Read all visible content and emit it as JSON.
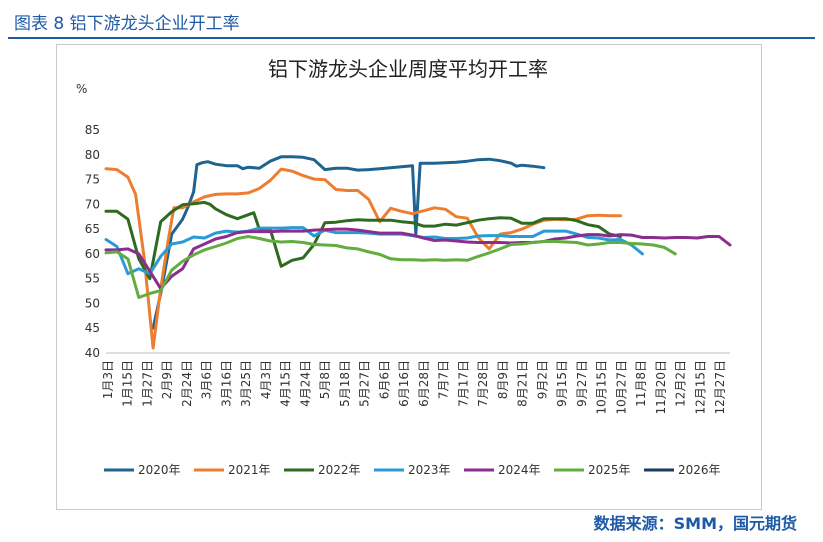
{
  "header": {
    "figure_label": "图表 8 铝下游龙头企业开工率",
    "source": "数据来源：SMM，国元期货"
  },
  "colors": {
    "header_blue": "#1f5aa6"
  },
  "chart_data": {
    "type": "line",
    "title": "铝下游龙头企业周度平均开工率",
    "unit_label": "%",
    "ylim": [
      40,
      85
    ],
    "yticks": [
      40,
      45,
      50,
      55,
      60,
      65,
      70,
      75,
      80,
      85
    ],
    "x_ticks": [
      "1月3日",
      "1月15日",
      "1月27日",
      "2月9日",
      "2月24日",
      "3月6日",
      "3月16日",
      "3月25日",
      "4月3日",
      "4月15日",
      "4月24日",
      "5月8日",
      "5月18日",
      "5月27日",
      "6月6日",
      "6月16日",
      "6月28日",
      "7月7日",
      "7月17日",
      "7月28日",
      "8月9日",
      "8月21日",
      "9月2日",
      "9月15日",
      "9月27日",
      "10月15日",
      "10月27日",
      "11月8日",
      "11月20日",
      "12月2日",
      "12月15日",
      "12月27日"
    ],
    "grid": false,
    "legend_position": "bottom",
    "series": [
      {
        "name": "2020年",
        "color": "#1f6391",
        "points": [
          [
            5.3,
            45.0
          ],
          [
            6,
            52.0
          ],
          [
            6.5,
            58.0
          ],
          [
            7,
            64.0
          ],
          [
            7.5,
            65.5
          ],
          [
            8,
            67.0
          ],
          [
            8.5,
            69.5
          ],
          [
            9,
            72.5
          ],
          [
            9.3,
            78.0
          ],
          [
            9.8,
            78.4
          ],
          [
            10.3,
            78.6
          ],
          [
            11,
            78.1
          ],
          [
            12,
            77.8
          ],
          [
            13,
            77.8
          ],
          [
            13.5,
            77.2
          ],
          [
            14,
            77.5
          ],
          [
            15,
            77.3
          ],
          [
            16,
            78.7
          ],
          [
            17,
            79.6
          ],
          [
            18,
            79.6
          ],
          [
            19,
            79.5
          ],
          [
            20,
            79.0
          ],
          [
            21,
            77.0
          ],
          [
            22,
            77.3
          ],
          [
            23,
            77.3
          ],
          [
            24,
            76.9
          ],
          [
            25,
            77.0
          ],
          [
            26,
            77.2
          ],
          [
            27,
            77.4
          ],
          [
            28,
            77.6
          ],
          [
            29,
            77.8
          ],
          [
            29.3,
            64.0
          ],
          [
            29.7,
            78.3
          ],
          [
            30,
            78.3
          ],
          [
            31,
            78.3
          ],
          [
            32,
            78.4
          ],
          [
            33,
            78.5
          ],
          [
            34,
            78.7
          ],
          [
            35,
            79.0
          ],
          [
            36,
            79.1
          ],
          [
            37,
            78.8
          ],
          [
            38,
            78.3
          ],
          [
            38.5,
            77.7
          ],
          [
            39,
            77.9
          ],
          [
            40,
            77.7
          ],
          [
            41,
            77.4
          ]
        ]
      },
      {
        "name": "2021年",
        "color": "#ed7d31",
        "points": [
          [
            1,
            77.2
          ],
          [
            2,
            77.0
          ],
          [
            3,
            75.5
          ],
          [
            3.7,
            72.0
          ],
          [
            4.5,
            59.0
          ],
          [
            5.3,
            41.0
          ],
          [
            6,
            53.0
          ],
          [
            6.7,
            63.0
          ],
          [
            7.2,
            69.3
          ],
          [
            8,
            69.3
          ],
          [
            9,
            70.5
          ],
          [
            10,
            71.5
          ],
          [
            11,
            72.0
          ],
          [
            12,
            72.1
          ],
          [
            13,
            72.1
          ],
          [
            14,
            72.3
          ],
          [
            15,
            73.2
          ],
          [
            16,
            74.8
          ],
          [
            17,
            77.1
          ],
          [
            18,
            76.7
          ],
          [
            19,
            75.8
          ],
          [
            20,
            75.1
          ],
          [
            21,
            75.0
          ],
          [
            22,
            73.0
          ],
          [
            23,
            72.8
          ],
          [
            24,
            72.8
          ],
          [
            25,
            71.0
          ],
          [
            26,
            66.5
          ],
          [
            27,
            69.2
          ],
          [
            28,
            68.6
          ],
          [
            29,
            68.1
          ],
          [
            30,
            68.7
          ],
          [
            31,
            69.3
          ],
          [
            32,
            69.0
          ],
          [
            33,
            67.5
          ],
          [
            34,
            67.2
          ],
          [
            35,
            63.3
          ],
          [
            36,
            61.0
          ],
          [
            37,
            64.0
          ],
          [
            38,
            64.3
          ],
          [
            39,
            65.0
          ],
          [
            40,
            66.0
          ],
          [
            41,
            66.8
          ],
          [
            42,
            67.0
          ],
          [
            43,
            66.9
          ],
          [
            44,
            67.0
          ],
          [
            45,
            67.7
          ],
          [
            46,
            67.8
          ],
          [
            47,
            67.7
          ],
          [
            48,
            67.7
          ]
        ]
      },
      {
        "name": "2022年",
        "color": "#2e6b1f",
        "points": [
          [
            1,
            68.6
          ],
          [
            2,
            68.6
          ],
          [
            3,
            67.0
          ],
          [
            4,
            59.0
          ],
          [
            5,
            55.0
          ],
          [
            6,
            66.5
          ],
          [
            7,
            68.5
          ],
          [
            8,
            69.9
          ],
          [
            9,
            70.1
          ],
          [
            10,
            70.4
          ],
          [
            10.5,
            70.0
          ],
          [
            11,
            69.1
          ],
          [
            12,
            67.9
          ],
          [
            13,
            67.1
          ],
          [
            14,
            67.9
          ],
          [
            14.5,
            68.3
          ],
          [
            15,
            65.0
          ],
          [
            16,
            65.0
          ],
          [
            17,
            57.5
          ],
          [
            18,
            58.7
          ],
          [
            19,
            59.2
          ],
          [
            20,
            61.9
          ],
          [
            21,
            66.3
          ],
          [
            22,
            66.4
          ],
          [
            23,
            66.7
          ],
          [
            24,
            66.9
          ],
          [
            25,
            66.8
          ],
          [
            26,
            66.8
          ],
          [
            27,
            66.8
          ],
          [
            28,
            66.5
          ],
          [
            29,
            66.3
          ],
          [
            30,
            65.6
          ],
          [
            31,
            65.6
          ],
          [
            32,
            66.0
          ],
          [
            33,
            65.8
          ],
          [
            34,
            66.3
          ],
          [
            35,
            66.8
          ],
          [
            36,
            67.1
          ],
          [
            37,
            67.3
          ],
          [
            38,
            67.2
          ],
          [
            39,
            66.2
          ],
          [
            40,
            66.2
          ],
          [
            41,
            67.1
          ],
          [
            42,
            67.1
          ],
          [
            43,
            67.1
          ],
          [
            44,
            66.7
          ],
          [
            45,
            65.9
          ],
          [
            46,
            65.5
          ],
          [
            47,
            64.0
          ],
          [
            48,
            63.5
          ]
        ]
      },
      {
        "name": "2023年",
        "color": "#2a9bd6",
        "points": [
          [
            1,
            62.9
          ],
          [
            2,
            61.5
          ],
          [
            3,
            56.0
          ],
          [
            4,
            57.0
          ],
          [
            5,
            56.0
          ],
          [
            6,
            59.5
          ],
          [
            7,
            62.0
          ],
          [
            8,
            62.4
          ],
          [
            9,
            63.4
          ],
          [
            10,
            63.2
          ],
          [
            11,
            64.2
          ],
          [
            12,
            64.6
          ],
          [
            13,
            64.4
          ],
          [
            14,
            64.6
          ],
          [
            15,
            65.2
          ],
          [
            16,
            65.2
          ],
          [
            17,
            65.2
          ],
          [
            18,
            65.3
          ],
          [
            19,
            65.3
          ],
          [
            20,
            63.6
          ],
          [
            21,
            64.8
          ],
          [
            22,
            64.3
          ],
          [
            23,
            64.3
          ],
          [
            24,
            64.3
          ],
          [
            25,
            64.2
          ],
          [
            26,
            64.0
          ],
          [
            27,
            64.0
          ],
          [
            28,
            64.0
          ],
          [
            29,
            63.7
          ],
          [
            30,
            63.3
          ],
          [
            31,
            63.4
          ],
          [
            32,
            63.1
          ],
          [
            33,
            63.1
          ],
          [
            34,
            63.2
          ],
          [
            35,
            63.6
          ],
          [
            36,
            63.7
          ],
          [
            37,
            63.7
          ],
          [
            38,
            63.5
          ],
          [
            39,
            63.5
          ],
          [
            40,
            63.5
          ],
          [
            41,
            64.6
          ],
          [
            42,
            64.6
          ],
          [
            43,
            64.6
          ],
          [
            44,
            64.0
          ],
          [
            45,
            63.3
          ],
          [
            46,
            63.2
          ],
          [
            47,
            62.8
          ],
          [
            48,
            62.9
          ],
          [
            49,
            61.8
          ],
          [
            50,
            60.0
          ]
        ]
      },
      {
        "name": "2024年",
        "color": "#8b2d8f",
        "points": [
          [
            1,
            60.8
          ],
          [
            2,
            60.8
          ],
          [
            3,
            61.0
          ],
          [
            4,
            60.0
          ],
          [
            5,
            56.5
          ],
          [
            6,
            53.0
          ],
          [
            7,
            55.5
          ],
          [
            8,
            57.0
          ],
          [
            9,
            61.0
          ],
          [
            10,
            62.0
          ],
          [
            11,
            63.0
          ],
          [
            12,
            63.5
          ],
          [
            13,
            64.3
          ],
          [
            14,
            64.5
          ],
          [
            15,
            64.5
          ],
          [
            16,
            64.5
          ],
          [
            17,
            64.6
          ],
          [
            18,
            64.6
          ],
          [
            19,
            64.6
          ],
          [
            20,
            64.8
          ],
          [
            21,
            64.9
          ],
          [
            22,
            65.0
          ],
          [
            23,
            65.0
          ],
          [
            24,
            64.8
          ],
          [
            25,
            64.5
          ],
          [
            26,
            64.2
          ],
          [
            27,
            64.2
          ],
          [
            28,
            64.2
          ],
          [
            29,
            63.8
          ],
          [
            30,
            63.2
          ],
          [
            31,
            62.7
          ],
          [
            32,
            62.8
          ],
          [
            33,
            62.6
          ],
          [
            34,
            62.4
          ],
          [
            35,
            62.3
          ],
          [
            36,
            62.3
          ],
          [
            37,
            62.3
          ],
          [
            38,
            62.2
          ],
          [
            39,
            62.3
          ],
          [
            40,
            62.3
          ],
          [
            41,
            62.5
          ],
          [
            42,
            63.0
          ],
          [
            43,
            63.2
          ],
          [
            44,
            63.6
          ],
          [
            45,
            63.9
          ],
          [
            46,
            63.9
          ],
          [
            47,
            63.6
          ],
          [
            48,
            63.9
          ],
          [
            49,
            63.8
          ],
          [
            50,
            63.3
          ],
          [
            51,
            63.3
          ],
          [
            52,
            63.2
          ],
          [
            53,
            63.3
          ],
          [
            54,
            63.3
          ],
          [
            55,
            63.2
          ],
          [
            56,
            63.5
          ],
          [
            57,
            63.5
          ],
          [
            58,
            61.8
          ]
        ]
      },
      {
        "name": "2025年",
        "color": "#62ad3f",
        "points": [
          [
            1,
            60.2
          ],
          [
            2,
            60.4
          ],
          [
            3,
            59.0
          ],
          [
            4,
            51.2
          ],
          [
            5,
            52.0
          ],
          [
            6,
            52.6
          ],
          [
            7,
            56.7
          ],
          [
            8,
            58.5
          ],
          [
            9,
            59.8
          ],
          [
            10,
            60.8
          ],
          [
            11,
            61.5
          ],
          [
            12,
            62.2
          ],
          [
            13,
            63.1
          ],
          [
            14,
            63.5
          ],
          [
            15,
            63.1
          ],
          [
            16,
            62.6
          ],
          [
            17,
            62.4
          ],
          [
            18,
            62.5
          ],
          [
            19,
            62.3
          ],
          [
            20,
            61.9
          ],
          [
            21,
            61.8
          ],
          [
            22,
            61.7
          ],
          [
            23,
            61.2
          ],
          [
            24,
            61.0
          ],
          [
            25,
            60.4
          ],
          [
            26,
            59.9
          ],
          [
            27,
            59.0
          ],
          [
            28,
            58.8
          ],
          [
            29,
            58.8
          ],
          [
            30,
            58.7
          ],
          [
            31,
            58.8
          ],
          [
            32,
            58.7
          ],
          [
            33,
            58.8
          ],
          [
            34,
            58.7
          ],
          [
            35,
            59.5
          ],
          [
            36,
            60.2
          ],
          [
            37,
            61.0
          ],
          [
            38,
            61.9
          ],
          [
            39,
            62.0
          ],
          [
            40,
            62.3
          ],
          [
            41,
            62.5
          ],
          [
            42,
            62.5
          ],
          [
            43,
            62.4
          ],
          [
            44,
            62.3
          ],
          [
            45,
            61.8
          ],
          [
            46,
            62.0
          ],
          [
            47,
            62.3
          ],
          [
            48,
            62.3
          ],
          [
            49,
            62.1
          ],
          [
            50,
            62.0
          ],
          [
            51,
            61.8
          ],
          [
            52,
            61.3
          ],
          [
            53,
            60.0
          ]
        ]
      },
      {
        "name": "2026年",
        "color": "#1b3a64",
        "points": [
          [
            1,
            60.5
          ]
        ]
      }
    ]
  }
}
